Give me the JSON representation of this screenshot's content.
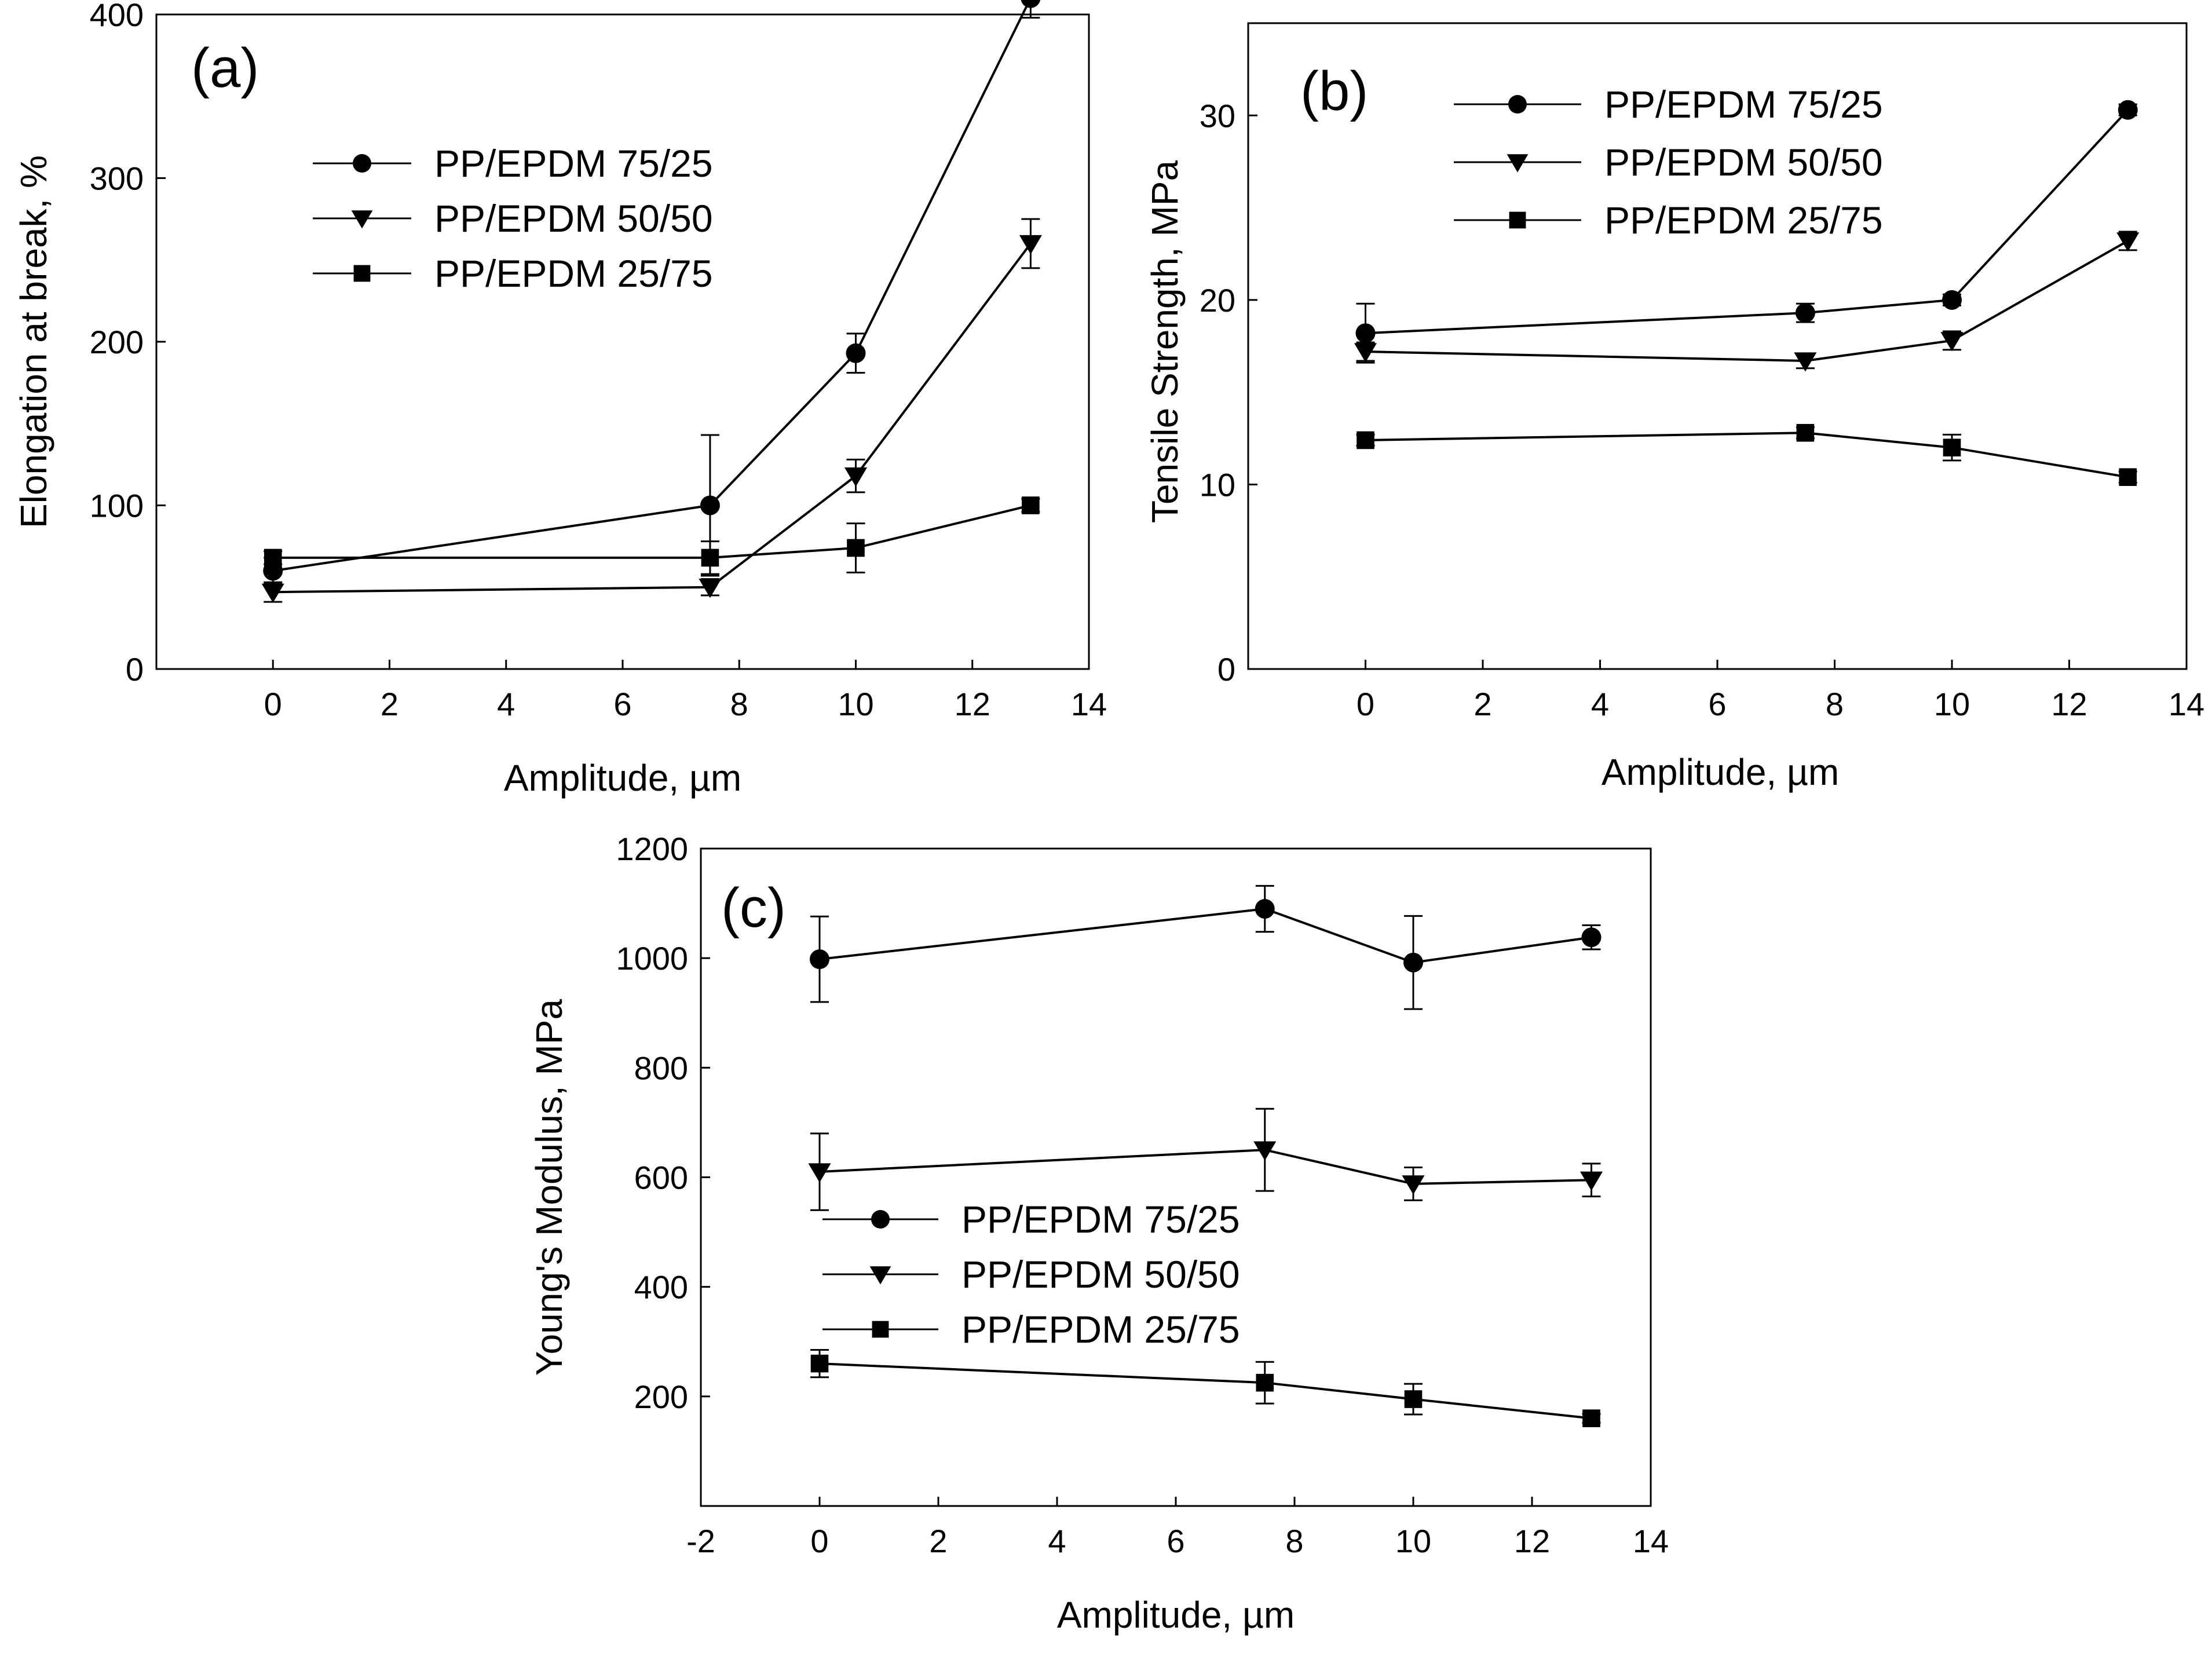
{
  "figure": {
    "background": "#ffffff",
    "ink": "#000000"
  },
  "chart_data": [
    {
      "id": "a",
      "type": "line",
      "panel_label": "(a)",
      "xlabel": "Amplitude, µm",
      "ylabel": "Elongation at break, %",
      "xlim": [
        -2,
        14
      ],
      "ylim": [
        0,
        400
      ],
      "xticks": [
        0,
        2,
        4,
        6,
        8,
        10,
        12,
        14
      ],
      "yticks": [
        0,
        100,
        200,
        300,
        400
      ],
      "x": [
        0,
        7.5,
        10,
        13
      ],
      "legend_position": "upper-left",
      "series": [
        {
          "name": "PP/EPDM 75/25",
          "marker": "circle",
          "values": [
            60,
            100,
            193,
            410
          ],
          "errors": [
            8,
            43,
            12,
            12
          ]
        },
        {
          "name": "PP/EPDM 50/50",
          "marker": "triangle-down",
          "values": [
            47,
            50,
            118,
            260
          ],
          "errors": [
            6,
            5,
            10,
            15
          ]
        },
        {
          "name": "PP/EPDM 25/75",
          "marker": "square",
          "values": [
            68,
            68,
            74,
            100
          ],
          "errors": [
            4,
            10,
            15,
            4
          ]
        }
      ]
    },
    {
      "id": "b",
      "type": "line",
      "panel_label": "(b)",
      "xlabel": "Amplitude, µm",
      "ylabel": "Tensile Strength, MPa",
      "xlim": [
        -2,
        14
      ],
      "ylim": [
        0,
        35
      ],
      "xticks": [
        0,
        2,
        4,
        6,
        8,
        10,
        12,
        14
      ],
      "yticks": [
        0,
        10,
        20,
        30
      ],
      "x": [
        0,
        7.5,
        10,
        13
      ],
      "legend_position": "top",
      "series": [
        {
          "name": "PP/EPDM 75/25",
          "marker": "circle",
          "values": [
            18.2,
            19.3,
            20.0,
            30.3
          ],
          "errors": [
            1.6,
            0.5,
            0.3,
            0.3
          ]
        },
        {
          "name": "PP/EPDM 50/50",
          "marker": "triangle-down",
          "values": [
            17.2,
            16.7,
            17.8,
            23.2
          ],
          "errors": [
            0.5,
            0.4,
            0.5,
            0.5
          ]
        },
        {
          "name": "PP/EPDM 25/75",
          "marker": "square",
          "values": [
            12.4,
            12.8,
            12.0,
            10.4
          ],
          "errors": [
            0.3,
            0.3,
            0.7,
            0.3
          ]
        }
      ]
    },
    {
      "id": "c",
      "type": "line",
      "panel_label": "(c)",
      "xlabel": "Amplitude, µm",
      "ylabel": "Young's Modulus, MPa",
      "xlim": [
        -2,
        14
      ],
      "ylim": [
        0,
        1200
      ],
      "xticks": [
        -2,
        0,
        2,
        4,
        6,
        8,
        10,
        12,
        14
      ],
      "yticks": [
        200,
        400,
        600,
        800,
        1000,
        1200
      ],
      "x": [
        0,
        7.5,
        10,
        13
      ],
      "legend_position": "lower-left",
      "series": [
        {
          "name": "PP/EPDM 75/25",
          "marker": "circle",
          "values": [
            998,
            1090,
            992,
            1038
          ],
          "errors": [
            78,
            42,
            85,
            22
          ]
        },
        {
          "name": "PP/EPDM 50/50",
          "marker": "triangle-down",
          "values": [
            610,
            650,
            588,
            595
          ],
          "errors": [
            70,
            75,
            30,
            30
          ]
        },
        {
          "name": "PP/EPDM 25/75",
          "marker": "square",
          "values": [
            260,
            225,
            195,
            160
          ],
          "errors": [
            25,
            38,
            28,
            8
          ]
        }
      ]
    }
  ]
}
